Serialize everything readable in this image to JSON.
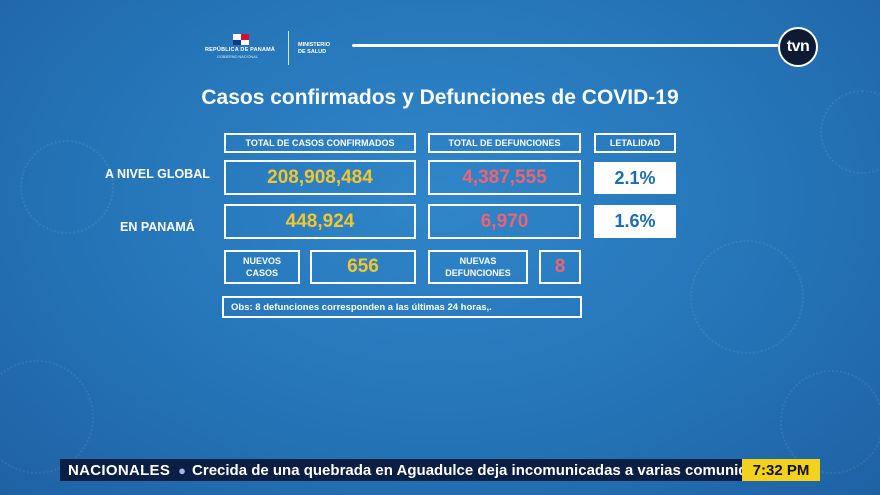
{
  "header": {
    "republic": "REPÚBLICA DE PANAMÁ",
    "government": "GOBIERNO NACIONAL",
    "ministry_line1": "MINISTERIO",
    "ministry_line2": "DE SALUD",
    "channel_logo": "tvn"
  },
  "title": "Casos confirmados y Defunciones de COVID-19",
  "columns": {
    "cases": "TOTAL DE CASOS CONFIRMADOS",
    "deaths": "TOTAL DE DEFUNCIONES",
    "lethality": "LETALIDAD"
  },
  "global": {
    "label": "A NIVEL GLOBAL",
    "cases": "208,908,484",
    "deaths": "4,387,555",
    "lethality": "2.1%"
  },
  "panama": {
    "label": "EN PANAMÁ",
    "cases": "448,924",
    "deaths": "6,970",
    "lethality": "1.6%"
  },
  "new": {
    "cases_label_1": "NUEVOS",
    "cases_label_2": "CASOS",
    "cases": "656",
    "deaths_label_1": "NUEVAS",
    "deaths_label_2": "DEFUNCIONES",
    "deaths": "8"
  },
  "obs": "Obs:  8 defunciones corresponden a las últimas 24 horas,.",
  "ticker": {
    "tag": "NACIONALES",
    "headline": "Crecida de una quebrada en Aguadulce deja incomunicadas a varias comunidades",
    "time": "7:32 PM"
  },
  "colors": {
    "yellow": "#f2c62f",
    "red": "#ee6373",
    "background": "#2574b8"
  }
}
